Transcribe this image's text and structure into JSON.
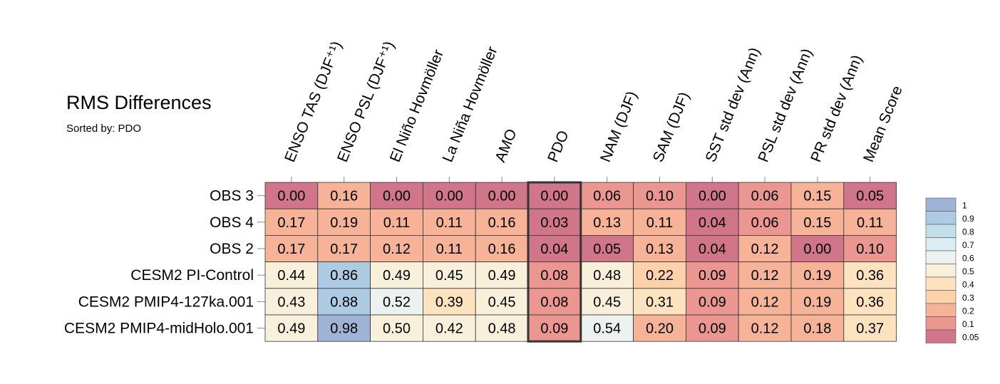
{
  "chart_data": {
    "type": "heatmap",
    "title": "RMS Differences",
    "subtitle": "Sorted by: PDO",
    "columns": [
      "ENSO TAS (DJF⁺¹)",
      "ENSO PSL (DJF⁺¹)",
      "El Niño Hovmöller",
      "La Niña Hovmöller",
      "AMO",
      "PDO",
      "NAM (DJF)",
      "SAM (DJF)",
      "SST std dev (Ann)",
      "PSL std dev (Ann)",
      "PR std dev (Ann)",
      "Mean Score"
    ],
    "rows": [
      "OBS 3",
      "OBS 4",
      "OBS 2",
      "CESM2 PI-Control",
      "CESM2 PMIP4-127ka.001",
      "CESM2 PMIP4-midHolo.001"
    ],
    "values": [
      [
        "0.00",
        "0.16",
        "0.00",
        "0.00",
        "0.00",
        "0.00",
        "0.06",
        "0.10",
        "0.00",
        "0.06",
        "0.15",
        "0.05"
      ],
      [
        "0.17",
        "0.19",
        "0.11",
        "0.11",
        "0.16",
        "0.03",
        "0.13",
        "0.11",
        "0.04",
        "0.06",
        "0.15",
        "0.11"
      ],
      [
        "0.17",
        "0.17",
        "0.12",
        "0.11",
        "0.16",
        "0.04",
        "0.05",
        "0.13",
        "0.04",
        "0.12",
        "0.00",
        "0.10"
      ],
      [
        "0.44",
        "0.86",
        "0.49",
        "0.45",
        "0.49",
        "0.08",
        "0.48",
        "0.22",
        "0.09",
        "0.12",
        "0.19",
        "0.36"
      ],
      [
        "0.43",
        "0.88",
        "0.52",
        "0.39",
        "0.45",
        "0.08",
        "0.45",
        "0.31",
        "0.09",
        "0.12",
        "0.19",
        "0.36"
      ],
      [
        "0.49",
        "0.98",
        "0.50",
        "0.42",
        "0.48",
        "0.09",
        "0.54",
        "0.20",
        "0.09",
        "0.12",
        "0.18",
        "0.37"
      ]
    ],
    "highlighted_column": "PDO",
    "legend": {
      "placement": "right",
      "labels": [
        "1",
        "0.9",
        "0.8",
        "0.7",
        "0.6",
        "0.5",
        "0.4",
        "0.3",
        "0.2",
        "0.1",
        "0.05"
      ],
      "colors": [
        "#9eb3d6",
        "#adcbe2",
        "#c2dfec",
        "#daedf3",
        "#ebf2f0",
        "#f8f0da",
        "#fde2bf",
        "#fcd1ac",
        "#f6b397",
        "#eb9690",
        "#d1758a"
      ]
    }
  }
}
